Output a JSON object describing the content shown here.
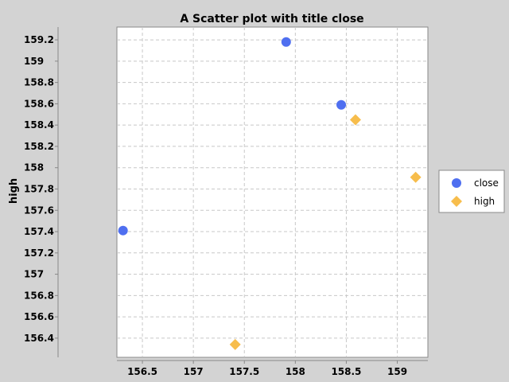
{
  "chart_data": {
    "type": "scatter",
    "title": "A Scatter plot with title close",
    "xlabel": "",
    "ylabel": "high",
    "xlim": [
      156.25,
      159.3
    ],
    "ylim": [
      156.22,
      159.32
    ],
    "x_ticks": [
      "156.5",
      "157",
      "157.5",
      "158",
      "158.5",
      "159"
    ],
    "x_tick_values": [
      156.5,
      157.0,
      157.5,
      158.0,
      158.5,
      159.0
    ],
    "y_ticks": [
      "156.4",
      "156.6",
      "156.8",
      "157",
      "157.2",
      "157.4",
      "157.6",
      "157.8",
      "158",
      "158.2",
      "158.4",
      "158.6",
      "158.8",
      "159",
      "159.2"
    ],
    "y_tick_values": [
      156.4,
      156.6,
      156.8,
      157.0,
      157.2,
      157.4,
      157.6,
      157.8,
      158.0,
      158.2,
      158.4,
      158.6,
      158.8,
      159.0,
      159.2
    ],
    "grid": true,
    "legend_position": "right",
    "series": [
      {
        "name": "close",
        "marker": "circle",
        "color": "#4f6ff0",
        "points": [
          {
            "x": 156.31,
            "y": 157.41
          },
          {
            "x": 157.91,
            "y": 159.18
          },
          {
            "x": 158.45,
            "y": 158.59
          }
        ]
      },
      {
        "name": "high",
        "marker": "diamond",
        "color": "#f7bd4c",
        "points": [
          {
            "x": 157.41,
            "y": 156.34
          },
          {
            "x": 158.59,
            "y": 158.45
          },
          {
            "x": 159.18,
            "y": 157.91
          }
        ]
      }
    ]
  }
}
